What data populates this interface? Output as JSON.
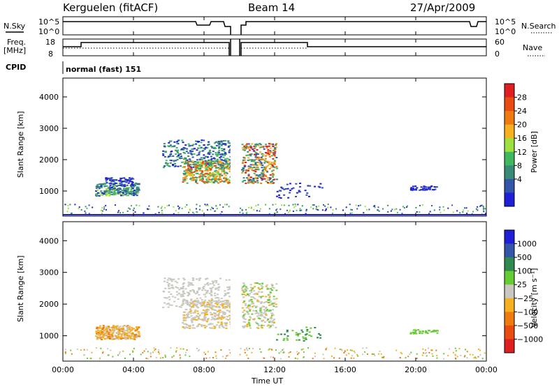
{
  "header": {
    "station": "Kerguelen (fitACF)",
    "beam": "Beam 14",
    "date": "27/Apr/2009"
  },
  "status_panels": {
    "nsky_label": "N.Sky",
    "nsearch_label": "N.Search",
    "freq_label_1": "Freq.",
    "freq_label_2": "[MHz]",
    "nave_label": "Nave",
    "cpid_label": "CPID",
    "cpid_text": "normal (fast) 151",
    "sky_ticks_left": [
      "10^5",
      "10^0"
    ],
    "sky_ticks_right": [
      "10^5",
      "10^0"
    ],
    "freq_ticks": [
      "18",
      "8"
    ],
    "nave_ticks": [
      "60",
      "0"
    ]
  },
  "colorbars": {
    "power_label": "Power [dB]",
    "power_ticks": [
      "28",
      "24",
      "20",
      "16",
      "12",
      "8",
      "4"
    ],
    "power_colors": [
      "#e02020",
      "#e84c10",
      "#f07a10",
      "#f6b020",
      "#9ee040",
      "#40b860",
      "#3a8a78",
      "#3355aa",
      "#1f1fd8"
    ],
    "velocity_label": "Velocity [m s⁻¹]",
    "velocity_ticks": [
      "1000",
      "500",
      "100",
      "25",
      "−25",
      "−100",
      "−500",
      "−1000"
    ],
    "velocity_colors": [
      "#1f1fd8",
      "#3355aa",
      "#2f8a50",
      "#66cc33",
      "#c8c8c0",
      "#f6b020",
      "#f07a10",
      "#e84c10",
      "#e02020"
    ]
  },
  "chart_data": {
    "type": "heatmap",
    "xlabel": "Time UT",
    "ylabel": "Slant Range [km]",
    "xlim": [
      0,
      24
    ],
    "ylim": [
      200,
      4600
    ],
    "x_ticks": [
      "00:00",
      "04:00",
      "08:00",
      "12:00",
      "16:00",
      "20:00",
      "00:00"
    ],
    "y_ticks": [
      "1000",
      "2000",
      "3000",
      "4000"
    ],
    "data_gap_hours": [
      9.5,
      10.0
    ]
  }
}
